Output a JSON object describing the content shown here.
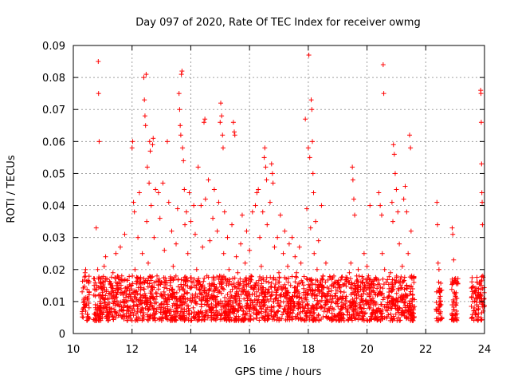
{
  "chart_data": {
    "type": "scatter",
    "title": "Day 097 of 2020, Rate Of TEC Index for receiver owmg",
    "xlabel": "GPS time / hours",
    "ylabel": "ROTI / TECUs",
    "xlim": [
      10,
      24
    ],
    "ylim": [
      0,
      0.09
    ],
    "x_ticks": [
      10,
      12,
      14,
      16,
      18,
      20,
      22,
      24
    ],
    "y_ticks": [
      0,
      0.01,
      0.02,
      0.03,
      0.04,
      0.05,
      0.06,
      0.07,
      0.08,
      0.09
    ],
    "x_tick_labels": [
      "10",
      "12",
      "14",
      "16",
      "18",
      "20",
      "22",
      "24"
    ],
    "y_tick_labels": [
      "0",
      "0.01",
      "0.02",
      "0.03",
      "0.04",
      "0.05",
      "0.06",
      "0.07",
      "0.08",
      "0.09"
    ],
    "grid": true,
    "marker": "+",
    "color": "#ff0000",
    "series": [
      {
        "points": [
          [
            10.35,
            0.008
          ],
          [
            10.38,
            0.01
          ],
          [
            10.42,
            0.007
          ],
          [
            10.45,
            0.009
          ],
          [
            10.48,
            0.006
          ],
          [
            10.4,
            0.019
          ],
          [
            10.42,
            0.02
          ],
          [
            10.5,
            0.011
          ],
          [
            10.7,
            0.012
          ],
          [
            10.75,
            0.009
          ],
          [
            10.78,
            0.033
          ],
          [
            10.8,
            0.015
          ],
          [
            10.83,
            0.02
          ],
          [
            10.85,
            0.085
          ],
          [
            10.86,
            0.075
          ],
          [
            10.88,
            0.06
          ],
          [
            10.9,
            0.01
          ],
          [
            10.95,
            0.014
          ],
          [
            11.0,
            0.012
          ],
          [
            11.05,
            0.021
          ],
          [
            11.1,
            0.024
          ],
          [
            11.12,
            0.008
          ],
          [
            11.18,
            0.011
          ],
          [
            11.25,
            0.016
          ],
          [
            11.3,
            0.013
          ],
          [
            11.35,
            0.019
          ],
          [
            11.4,
            0.01
          ],
          [
            11.45,
            0.025
          ],
          [
            11.5,
            0.015
          ],
          [
            11.55,
            0.009
          ],
          [
            11.6,
            0.027
          ],
          [
            11.65,
            0.018
          ],
          [
            11.7,
            0.012
          ],
          [
            11.75,
            0.031
          ],
          [
            11.8,
            0.01
          ],
          [
            11.85,
            0.014
          ],
          [
            11.9,
            0.008
          ],
          [
            11.95,
            0.011
          ],
          [
            12.0,
            0.058
          ],
          [
            12.02,
            0.06
          ],
          [
            12.05,
            0.041
          ],
          [
            12.08,
            0.038
          ],
          [
            12.1,
            0.02
          ],
          [
            12.12,
            0.013
          ],
          [
            12.15,
            0.009
          ],
          [
            12.2,
            0.03
          ],
          [
            12.25,
            0.044
          ],
          [
            12.3,
            0.016
          ],
          [
            12.35,
            0.025
          ],
          [
            12.4,
            0.08
          ],
          [
            12.42,
            0.073
          ],
          [
            12.44,
            0.068
          ],
          [
            12.46,
            0.065
          ],
          [
            12.48,
            0.081
          ],
          [
            12.5,
            0.035
          ],
          [
            12.52,
            0.052
          ],
          [
            12.55,
            0.022
          ],
          [
            12.58,
            0.047
          ],
          [
            12.6,
            0.06
          ],
          [
            12.62,
            0.057
          ],
          [
            12.65,
            0.04
          ],
          [
            12.7,
            0.059
          ],
          [
            12.72,
            0.061
          ],
          [
            12.75,
            0.03
          ],
          [
            12.8,
            0.045
          ],
          [
            12.85,
            0.018
          ],
          [
            12.9,
            0.044
          ],
          [
            12.95,
            0.036
          ],
          [
            13.0,
            0.012
          ],
          [
            13.05,
            0.047
          ],
          [
            13.1,
            0.026
          ],
          [
            13.2,
            0.06
          ],
          [
            13.25,
            0.041
          ],
          [
            13.3,
            0.015
          ],
          [
            13.35,
            0.032
          ],
          [
            13.4,
            0.021
          ],
          [
            13.45,
            0.011
          ],
          [
            13.5,
            0.028
          ],
          [
            13.55,
            0.039
          ],
          [
            13.6,
            0.075
          ],
          [
            13.62,
            0.07
          ],
          [
            13.64,
            0.065
          ],
          [
            13.66,
            0.062
          ],
          [
            13.68,
            0.081
          ],
          [
            13.7,
            0.082
          ],
          [
            13.72,
            0.058
          ],
          [
            13.75,
            0.054
          ],
          [
            13.78,
            0.045
          ],
          [
            13.8,
            0.034
          ],
          [
            13.85,
            0.038
          ],
          [
            13.9,
            0.025
          ],
          [
            13.95,
            0.044
          ],
          [
            14.0,
            0.035
          ],
          [
            14.05,
            0.012
          ],
          [
            14.1,
            0.04
          ],
          [
            14.15,
            0.031
          ],
          [
            14.2,
            0.02
          ],
          [
            14.25,
            0.052
          ],
          [
            14.3,
            0.016
          ],
          [
            14.35,
            0.04
          ],
          [
            14.4,
            0.027
          ],
          [
            14.45,
            0.066
          ],
          [
            14.48,
            0.067
          ],
          [
            14.5,
            0.042
          ],
          [
            14.55,
            0.018
          ],
          [
            14.6,
            0.048
          ],
          [
            14.65,
            0.029
          ],
          [
            14.7,
            0.015
          ],
          [
            14.75,
            0.036
          ],
          [
            14.8,
            0.045
          ],
          [
            14.85,
            0.014
          ],
          [
            14.9,
            0.032
          ],
          [
            14.95,
            0.041
          ],
          [
            15.0,
            0.066
          ],
          [
            15.02,
            0.072
          ],
          [
            15.05,
            0.068
          ],
          [
            15.08,
            0.062
          ],
          [
            15.1,
            0.058
          ],
          [
            15.12,
            0.025
          ],
          [
            15.15,
            0.038
          ],
          [
            15.2,
            0.017
          ],
          [
            15.25,
            0.03
          ],
          [
            15.3,
            0.02
          ],
          [
            15.35,
            0.013
          ],
          [
            15.4,
            0.034
          ],
          [
            15.45,
            0.066
          ],
          [
            15.48,
            0.063
          ],
          [
            15.5,
            0.062
          ],
          [
            15.55,
            0.024
          ],
          [
            15.6,
            0.019
          ],
          [
            15.65,
            0.011
          ],
          [
            15.7,
            0.028
          ],
          [
            15.75,
            0.037
          ],
          [
            15.8,
            0.015
          ],
          [
            15.85,
            0.022
          ],
          [
            15.9,
            0.032
          ],
          [
            15.95,
            0.013
          ],
          [
            16.0,
            0.026
          ],
          [
            16.05,
            0.018
          ],
          [
            16.1,
            0.038
          ],
          [
            16.15,
            0.014
          ],
          [
            16.2,
            0.04
          ],
          [
            16.25,
            0.044
          ],
          [
            16.3,
            0.045
          ],
          [
            16.35,
            0.03
          ],
          [
            16.4,
            0.021
          ],
          [
            16.45,
            0.038
          ],
          [
            16.5,
            0.055
          ],
          [
            16.52,
            0.058
          ],
          [
            16.55,
            0.052
          ],
          [
            16.58,
            0.048
          ],
          [
            16.6,
            0.034
          ],
          [
            16.65,
            0.016
          ],
          [
            16.7,
            0.041
          ],
          [
            16.75,
            0.053
          ],
          [
            16.78,
            0.05
          ],
          [
            16.8,
            0.047
          ],
          [
            16.85,
            0.027
          ],
          [
            16.9,
            0.012
          ],
          [
            16.95,
            0.03
          ],
          [
            17.0,
            0.019
          ],
          [
            17.05,
            0.037
          ],
          [
            17.1,
            0.014
          ],
          [
            17.15,
            0.025
          ],
          [
            17.2,
            0.032
          ],
          [
            17.25,
            0.011
          ],
          [
            17.3,
            0.021
          ],
          [
            17.35,
            0.028
          ],
          [
            17.4,
            0.015
          ],
          [
            17.45,
            0.03
          ],
          [
            17.5,
            0.01
          ],
          [
            17.55,
            0.024
          ],
          [
            17.6,
            0.019
          ],
          [
            17.65,
            0.013
          ],
          [
            17.7,
            0.027
          ],
          [
            17.75,
            0.022
          ],
          [
            17.8,
            0.016
          ],
          [
            17.85,
            0.012
          ],
          [
            17.9,
            0.067
          ],
          [
            17.95,
            0.039
          ],
          [
            18.0,
            0.058
          ],
          [
            18.02,
            0.087
          ],
          [
            18.05,
            0.055
          ],
          [
            18.08,
            0.033
          ],
          [
            18.1,
            0.073
          ],
          [
            18.12,
            0.07
          ],
          [
            18.14,
            0.06
          ],
          [
            18.16,
            0.05
          ],
          [
            18.18,
            0.044
          ],
          [
            18.2,
            0.025
          ],
          [
            18.25,
            0.035
          ],
          [
            18.3,
            0.02
          ],
          [
            18.35,
            0.029
          ],
          [
            18.4,
            0.015
          ],
          [
            18.45,
            0.04
          ],
          [
            18.5,
            0.018
          ],
          [
            18.55,
            0.012
          ],
          [
            18.6,
            0.022
          ],
          [
            18.7,
            0.014
          ],
          [
            18.8,
            0.01
          ],
          [
            18.9,
            0.016
          ],
          [
            19.0,
            0.011
          ],
          [
            19.1,
            0.013
          ],
          [
            19.2,
            0.009
          ],
          [
            19.3,
            0.017
          ],
          [
            19.4,
            0.019
          ],
          [
            19.45,
            0.022
          ],
          [
            19.5,
            0.052
          ],
          [
            19.52,
            0.048
          ],
          [
            19.55,
            0.042
          ],
          [
            19.58,
            0.037
          ],
          [
            19.6,
            0.014
          ],
          [
            19.65,
            0.011
          ],
          [
            19.7,
            0.02
          ],
          [
            19.75,
            0.009
          ],
          [
            19.8,
            0.012
          ],
          [
            19.85,
            0.016
          ],
          [
            19.9,
            0.025
          ],
          [
            19.95,
            0.01
          ],
          [
            20.0,
            0.021
          ],
          [
            20.05,
            0.018
          ],
          [
            20.1,
            0.04
          ],
          [
            20.15,
            0.013
          ],
          [
            20.2,
            0.011
          ],
          [
            20.25,
            0.015
          ],
          [
            20.3,
            0.009
          ],
          [
            20.35,
            0.012
          ],
          [
            20.4,
            0.044
          ],
          [
            20.45,
            0.04
          ],
          [
            20.5,
            0.037
          ],
          [
            20.52,
            0.025
          ],
          [
            20.55,
            0.084
          ],
          [
            20.57,
            0.075
          ],
          [
            20.6,
            0.02
          ],
          [
            20.65,
            0.016
          ],
          [
            20.7,
            0.011
          ],
          [
            20.75,
            0.014
          ],
          [
            20.8,
            0.019
          ],
          [
            20.85,
            0.041
          ],
          [
            20.88,
            0.035
          ],
          [
            20.9,
            0.059
          ],
          [
            20.93,
            0.056
          ],
          [
            20.96,
            0.05
          ],
          [
            21.0,
            0.045
          ],
          [
            21.05,
            0.038
          ],
          [
            21.1,
            0.028
          ],
          [
            21.15,
            0.015
          ],
          [
            21.2,
            0.021
          ],
          [
            21.25,
            0.042
          ],
          [
            21.3,
            0.046
          ],
          [
            21.35,
            0.038
          ],
          [
            21.4,
            0.025
          ],
          [
            21.45,
            0.062
          ],
          [
            21.48,
            0.058
          ],
          [
            21.5,
            0.032
          ],
          [
            21.52,
            0.018
          ],
          [
            21.55,
            0.012
          ],
          [
            21.58,
            0.008
          ],
          [
            22.38,
            0.041
          ],
          [
            22.4,
            0.034
          ],
          [
            22.42,
            0.022
          ],
          [
            22.45,
            0.02
          ],
          [
            22.48,
            0.013
          ],
          [
            22.5,
            0.01
          ],
          [
            22.52,
            0.009
          ],
          [
            22.9,
            0.033
          ],
          [
            22.92,
            0.031
          ],
          [
            22.95,
            0.023
          ],
          [
            22.98,
            0.017
          ],
          [
            23.0,
            0.012
          ],
          [
            23.02,
            0.009
          ],
          [
            23.05,
            0.007
          ],
          [
            23.6,
            0.01
          ],
          [
            23.65,
            0.008
          ],
          [
            23.7,
            0.011
          ],
          [
            23.75,
            0.016
          ],
          [
            23.8,
            0.014
          ],
          [
            23.85,
            0.012
          ],
          [
            23.87,
            0.076
          ],
          [
            23.88,
            0.075
          ],
          [
            23.89,
            0.066
          ],
          [
            23.9,
            0.053
          ],
          [
            23.91,
            0.044
          ],
          [
            23.92,
            0.041
          ],
          [
            23.93,
            0.034
          ],
          [
            23.94,
            0.018
          ],
          [
            23.95,
            0.009
          ]
        ]
      }
    ],
    "dense_band": {
      "x_range": [
        10.7,
        24.0
      ],
      "y_range": [
        0.004,
        0.018
      ]
    }
  }
}
